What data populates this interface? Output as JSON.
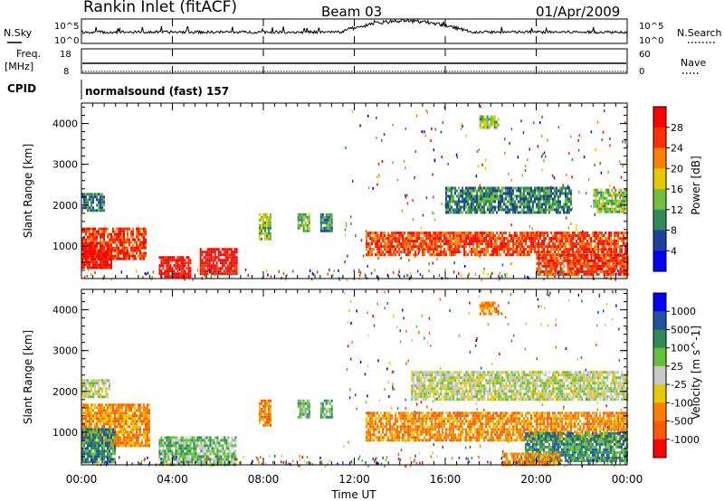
{
  "header": {
    "station": "Rankin Inlet (fitACF)",
    "beam": "Beam 03",
    "date": "01/Apr/2009"
  },
  "top_panel": {
    "left_label": "N.Sky",
    "right_label": "N.Search",
    "ticks_left": [
      "10^5",
      "10^0"
    ],
    "ticks_right": [
      "10^5",
      "10^0"
    ]
  },
  "freq_panel": {
    "left_label_1": "Freq.",
    "left_label_2": "[MHz]",
    "right_label": "Nave",
    "ticks_left": [
      "18",
      "8"
    ],
    "ticks_right": [
      "60",
      "0"
    ]
  },
  "cpid": {
    "label": "CPID",
    "value": "normalsound (fast) 157"
  },
  "x_axis": {
    "label": "Time UT",
    "ticks": [
      "00:00",
      "04:00",
      "08:00",
      "12:00",
      "16:00",
      "20:00",
      "00:00"
    ]
  },
  "colors": {
    "power": [
      "#0000ff",
      "#2040a0",
      "#2e8b57",
      "#6fbf40",
      "#e8c800",
      "#ff8000",
      "#ff3000",
      "#ff0000"
    ],
    "velocity": [
      "#0000ff",
      "#2050a0",
      "#2e8b57",
      "#66c03a",
      "#c8c8c8",
      "#e8c800",
      "#ff8000",
      "#ff5a00",
      "#ff0000"
    ]
  },
  "chart_data": [
    {
      "type": "heatmap",
      "name": "power",
      "ylabel": "Slant Range [km]",
      "y_ticks": [
        "1000",
        "2000",
        "3000",
        "4000"
      ],
      "ylim": [
        200,
        4500
      ],
      "colorbar_label": "Power [dB]",
      "colorbar_ticks": [
        "4",
        "8",
        "12",
        "16",
        "20",
        "24",
        "28"
      ],
      "regions": [
        {
          "t0": 0.0,
          "t1": 1.0,
          "r0": 1850,
          "r1": 2300,
          "level": 2
        },
        {
          "t0": 0.0,
          "t1": 2.8,
          "r0": 700,
          "r1": 1450,
          "level": 6
        },
        {
          "t0": 0.0,
          "t1": 1.3,
          "r0": 500,
          "r1": 1100,
          "level": 7
        },
        {
          "t0": 3.4,
          "t1": 4.8,
          "r0": 250,
          "r1": 750,
          "level": 7
        },
        {
          "t0": 5.2,
          "t1": 6.8,
          "r0": 300,
          "r1": 950,
          "level": 7
        },
        {
          "t0": 7.8,
          "t1": 8.3,
          "r0": 1200,
          "r1": 1800,
          "level": 3
        },
        {
          "t0": 9.5,
          "t1": 10.0,
          "r0": 1400,
          "r1": 1800,
          "level": 3
        },
        {
          "t0": 10.5,
          "t1": 11.0,
          "r0": 1400,
          "r1": 1800,
          "level": 2
        },
        {
          "t0": 12.5,
          "t1": 24.0,
          "r0": 800,
          "r1": 1350,
          "level": 6
        },
        {
          "t0": 16.0,
          "t1": 21.5,
          "r0": 1850,
          "r1": 2450,
          "level": 2
        },
        {
          "t0": 22.5,
          "t1": 24.0,
          "r0": 1850,
          "r1": 2400,
          "level": 3
        },
        {
          "t0": 20.0,
          "t1": 24.0,
          "r0": 300,
          "r1": 800,
          "level": 6
        },
        {
          "t0": 17.5,
          "t1": 18.3,
          "r0": 3900,
          "r1": 4200,
          "level": 3
        }
      ]
    },
    {
      "type": "heatmap",
      "name": "velocity",
      "ylabel": "Slant Range [km]",
      "y_ticks": [
        "1000",
        "2000",
        "3000",
        "4000"
      ],
      "ylim": [
        200,
        4500
      ],
      "colorbar_label": "Velocity [m s^-1]",
      "colorbar_ticks": [
        "1000",
        "500",
        "100",
        "25",
        "-25",
        "-100",
        "-500",
        "-1000"
      ],
      "regions": [
        {
          "t0": 0.0,
          "t1": 1.2,
          "r0": 1850,
          "r1": 2300,
          "level": 4
        },
        {
          "t0": 0.0,
          "t1": 3.0,
          "r0": 700,
          "r1": 1700,
          "level": 6
        },
        {
          "t0": 0.0,
          "t1": 1.5,
          "r0": 300,
          "r1": 1100,
          "level": 2
        },
        {
          "t0": 3.4,
          "t1": 6.8,
          "r0": 200,
          "r1": 900,
          "level": 3
        },
        {
          "t0": 7.8,
          "t1": 8.3,
          "r0": 1200,
          "r1": 1800,
          "level": 6
        },
        {
          "t0": 9.5,
          "t1": 10.0,
          "r0": 1400,
          "r1": 1800,
          "level": 3
        },
        {
          "t0": 10.5,
          "t1": 11.0,
          "r0": 1400,
          "r1": 1800,
          "level": 3
        },
        {
          "t0": 12.5,
          "t1": 24.0,
          "r0": 800,
          "r1": 1500,
          "level": 6
        },
        {
          "t0": 14.5,
          "t1": 24.0,
          "r0": 1800,
          "r1": 2500,
          "level": 4
        },
        {
          "t0": 19.5,
          "t1": 24.0,
          "r0": 300,
          "r1": 1000,
          "level": 2
        },
        {
          "t0": 18.5,
          "t1": 21.0,
          "r0": 200,
          "r1": 500,
          "level": 6
        },
        {
          "t0": 17.5,
          "t1": 18.3,
          "r0": 3900,
          "r1": 4200,
          "level": 6
        }
      ]
    }
  ]
}
